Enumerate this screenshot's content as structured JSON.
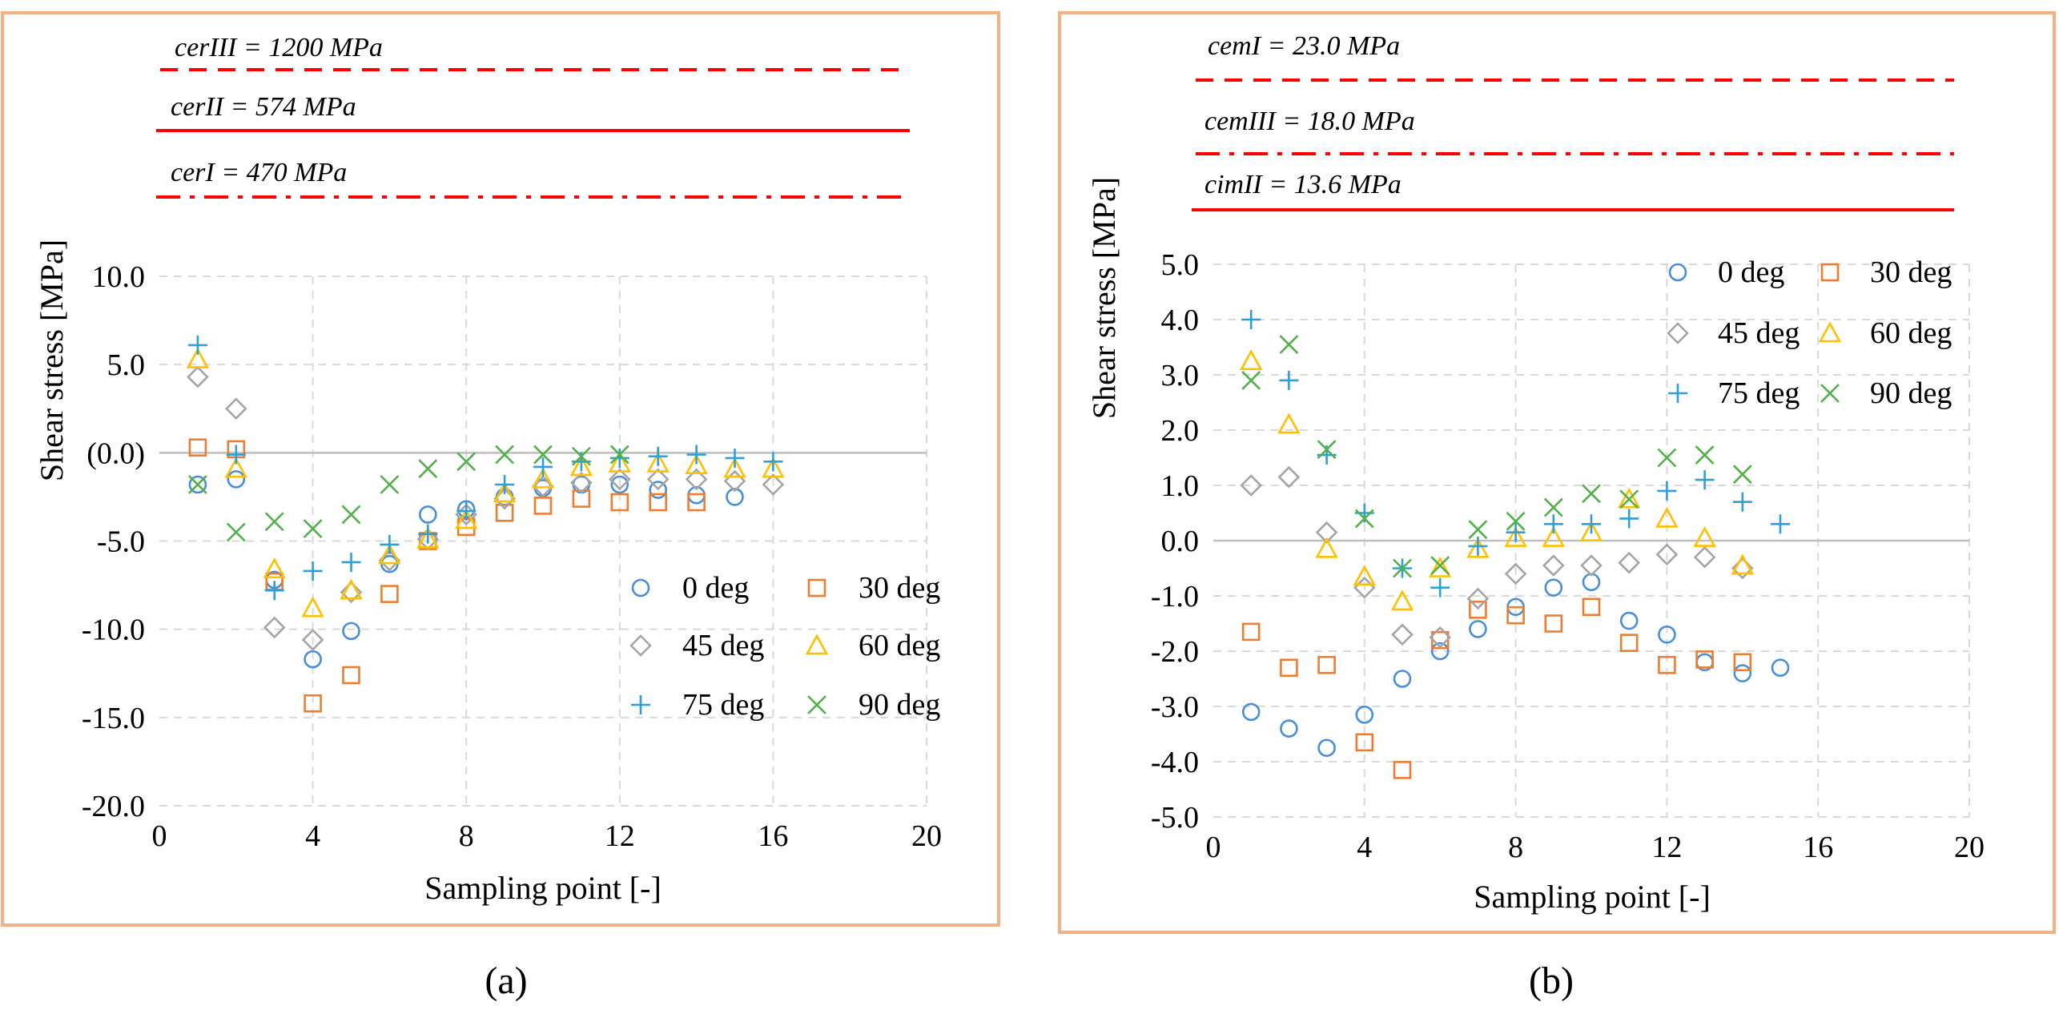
{
  "chart_data": [
    {
      "type": "scatter",
      "caption": "(a)",
      "xlabel": "Sampling point [-]",
      "ylabel": "Shear stress [MPa]",
      "xlim": [
        0,
        20
      ],
      "ylim": [
        -20,
        10
      ],
      "xticks": [
        0,
        4,
        8,
        12,
        16,
        20
      ],
      "xtick_labels": [
        "0",
        "4",
        "8",
        "12",
        "16",
        "20"
      ],
      "yticks": [
        10,
        5,
        0,
        -5,
        -10,
        -15,
        -20
      ],
      "ytick_labels": [
        "10.0",
        "5.0",
        "(0.0)",
        "-5.0",
        "-10.0",
        "-15.0",
        "-20.0"
      ],
      "grid": true,
      "legend_position": "bottom-right",
      "limits": [
        {
          "label": "cerIII = 1200 MPa",
          "style": "dashed"
        },
        {
          "label": "cerII = 574 MPa",
          "style": "solid"
        },
        {
          "label": "cerI = 470 MPa",
          "style": "dashdot"
        }
      ],
      "series": [
        {
          "name": "0 deg",
          "marker": "circle",
          "color": "#4a8fd6",
          "x": [
            1,
            2,
            3,
            4,
            5,
            6,
            7,
            8,
            9,
            10,
            11,
            12,
            13,
            14,
            15
          ],
          "y": [
            -1.8,
            -1.5,
            -7.2,
            -11.7,
            -10.1,
            -6.3,
            -3.5,
            -3.2,
            -2.5,
            -2.0,
            -1.8,
            -1.8,
            -2.1,
            -2.4,
            -2.5
          ]
        },
        {
          "name": "30 deg",
          "marker": "square",
          "color": "#ed7d31",
          "x": [
            1,
            2,
            3,
            4,
            5,
            6,
            7,
            8,
            9,
            10,
            11,
            12,
            13,
            14
          ],
          "y": [
            0.3,
            0.2,
            -7.3,
            -14.2,
            -12.6,
            -8.0,
            -5.0,
            -4.2,
            -3.4,
            -3.0,
            -2.6,
            -2.8,
            -2.8,
            -2.8
          ]
        },
        {
          "name": "45 deg",
          "marker": "diamond",
          "color": "#a5a5a5",
          "x": [
            1,
            2,
            3,
            4,
            5,
            6,
            7,
            8,
            9,
            10,
            11,
            12,
            13,
            14,
            15,
            16
          ],
          "y": [
            4.3,
            2.5,
            -9.9,
            -10.6,
            -7.9,
            -6.1,
            -4.9,
            -3.5,
            -2.6,
            -1.9,
            -1.7,
            -1.5,
            -1.5,
            -1.5,
            -1.6,
            -1.8
          ]
        },
        {
          "name": "60 deg",
          "marker": "triangle",
          "color": "#ffc000",
          "x": [
            1,
            2,
            3,
            4,
            5,
            6,
            7,
            8,
            9,
            10,
            11,
            12,
            13,
            14,
            15,
            16
          ],
          "y": [
            5.3,
            -0.9,
            -6.6,
            -8.8,
            -7.8,
            -5.8,
            -4.9,
            -3.8,
            -2.3,
            -1.5,
            -0.8,
            -0.6,
            -0.6,
            -0.7,
            -0.9,
            -0.9
          ]
        },
        {
          "name": "75 deg",
          "marker": "plus",
          "color": "#2e9fd8",
          "x": [
            1,
            2,
            3,
            4,
            5,
            6,
            7,
            8,
            9,
            10,
            11,
            12,
            13,
            14,
            15,
            16
          ],
          "y": [
            6.1,
            -0.1,
            -7.8,
            -6.7,
            -6.2,
            -5.2,
            -4.6,
            -3.3,
            -1.8,
            -0.8,
            -0.5,
            -0.3,
            -0.2,
            -0.1,
            -0.3,
            -0.5
          ]
        },
        {
          "name": "90 deg",
          "marker": "x",
          "color": "#54b04a",
          "x": [
            1,
            2,
            3,
            4,
            5,
            6,
            7,
            8,
            9,
            10,
            11,
            12
          ],
          "y": [
            -1.8,
            -4.5,
            -3.9,
            -4.3,
            -3.5,
            -1.8,
            -0.9,
            -0.5,
            -0.1,
            -0.1,
            -0.2,
            -0.1
          ]
        }
      ]
    },
    {
      "type": "scatter",
      "caption": "(b)",
      "xlabel": "Sampling point [-]",
      "ylabel": "Shear stress [MPa]",
      "xlim": [
        0,
        20
      ],
      "ylim": [
        -5,
        5
      ],
      "xticks": [
        0,
        4,
        8,
        12,
        16,
        20
      ],
      "xtick_labels": [
        "0",
        "4",
        "8",
        "12",
        "16",
        "20"
      ],
      "yticks": [
        5,
        4,
        3,
        2,
        1,
        0,
        -1,
        -2,
        -3,
        -4,
        -5
      ],
      "ytick_labels": [
        "5.0",
        "4.0",
        "3.0",
        "2.0",
        "1.0",
        "0.0",
        "-1.0",
        "-2.0",
        "-3.0",
        "-4.0",
        "-5.0"
      ],
      "grid": true,
      "legend_position": "top-right",
      "limits": [
        {
          "label": "cemI = 23.0 MPa",
          "style": "dashed"
        },
        {
          "label": "cemIII = 18.0 MPa",
          "style": "dashdot"
        },
        {
          "label": "cimII = 13.6 MPa",
          "style": "solid"
        }
      ],
      "series": [
        {
          "name": "0 deg",
          "marker": "circle",
          "color": "#4a8fd6",
          "x": [
            1,
            2,
            3,
            4,
            5,
            6,
            7,
            8,
            9,
            10,
            11,
            12,
            13,
            14,
            15
          ],
          "y": [
            -3.1,
            -3.4,
            -3.75,
            -3.15,
            -2.5,
            -2.0,
            -1.6,
            -1.2,
            -0.85,
            -0.75,
            -1.45,
            -1.7,
            -2.2,
            -2.4,
            -2.3
          ]
        },
        {
          "name": "30 deg",
          "marker": "square",
          "color": "#ed7d31",
          "x": [
            1,
            2,
            3,
            4,
            5,
            6,
            7,
            8,
            9,
            10,
            11,
            12,
            13,
            14
          ],
          "y": [
            -1.65,
            -2.3,
            -2.25,
            -3.65,
            -4.15,
            -1.8,
            -1.25,
            -1.35,
            -1.5,
            -1.2,
            -1.85,
            -2.25,
            -2.15,
            -2.2
          ]
        },
        {
          "name": "45 deg",
          "marker": "diamond",
          "color": "#a5a5a5",
          "x": [
            1,
            2,
            3,
            4,
            5,
            6,
            7,
            8,
            9,
            10,
            11,
            12,
            13,
            14
          ],
          "y": [
            1.0,
            1.15,
            0.15,
            -0.85,
            -1.7,
            -1.75,
            -1.05,
            -0.6,
            -0.45,
            -0.45,
            -0.4,
            -0.25,
            -0.3,
            -0.5
          ]
        },
        {
          "name": "60 deg",
          "marker": "triangle",
          "color": "#ffc000",
          "x": [
            1,
            2,
            3,
            4,
            5,
            6,
            7,
            8,
            9,
            10,
            11,
            12,
            13,
            14
          ],
          "y": [
            3.25,
            2.1,
            -0.15,
            -0.65,
            -1.1,
            -0.5,
            -0.15,
            0.05,
            0.05,
            0.15,
            0.75,
            0.4,
            0.05,
            -0.45
          ]
        },
        {
          "name": "75 deg",
          "marker": "plus",
          "color": "#2e9fd8",
          "x": [
            1,
            2,
            3,
            4,
            5,
            6,
            7,
            8,
            9,
            10,
            11,
            12,
            13,
            14,
            15
          ],
          "y": [
            4.0,
            2.9,
            1.55,
            0.5,
            -0.5,
            -0.85,
            -0.1,
            0.15,
            0.3,
            0.3,
            0.4,
            0.9,
            1.1,
            0.7,
            0.3
          ]
        },
        {
          "name": "90 deg",
          "marker": "x",
          "color": "#54b04a",
          "x": [
            1,
            2,
            3,
            4,
            5,
            6,
            7,
            8,
            9,
            10,
            11,
            12,
            13,
            14
          ],
          "y": [
            2.9,
            3.55,
            1.65,
            0.4,
            -0.5,
            -0.45,
            0.2,
            0.35,
            0.6,
            0.85,
            0.75,
            1.5,
            1.55,
            1.2
          ]
        }
      ]
    }
  ]
}
